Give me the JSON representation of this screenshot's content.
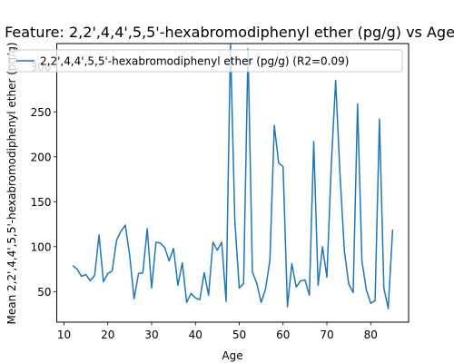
{
  "chart_data": {
    "type": "line",
    "title": "Feature: 2,2',4,4',5,5'-hexabromodiphenyl ether (pg/g) vs Age",
    "xlabel": "Age",
    "ylabel": "Mean 2,2',4,4',5,5'-hexabromodiphenyl ether (pg/g)",
    "xlim": [
      8.35,
      88.65
    ],
    "ylim": [
      16,
      326
    ],
    "xticks": [
      10,
      20,
      30,
      40,
      50,
      60,
      70,
      80
    ],
    "yticks": [
      50,
      100,
      150,
      200,
      250,
      300
    ],
    "grid": false,
    "legend_position": "top-right",
    "series": [
      {
        "name": "2,2',4,4',5,5'-hexabromodiphenyl ether (pg/g) (R2=0.09)",
        "color": "#1f77b4",
        "x": [
          12,
          13,
          14,
          15,
          16,
          17,
          18,
          19,
          20,
          21,
          22,
          23,
          24,
          25,
          26,
          27,
          28,
          29,
          30,
          31,
          32,
          33,
          34,
          35,
          36,
          37,
          38,
          39,
          40,
          41,
          42,
          43,
          44,
          45,
          46,
          47,
          48,
          49,
          50,
          51,
          52,
          53,
          54,
          55,
          56,
          57,
          58,
          59,
          60,
          61,
          62,
          63,
          64,
          65,
          66,
          67,
          68,
          69,
          70,
          71,
          72,
          73,
          74,
          75,
          76,
          77,
          78,
          79,
          80,
          81,
          82,
          83,
          84,
          85
        ],
        "y": [
          79,
          75,
          67,
          69,
          62,
          68,
          113,
          61,
          70,
          73,
          107,
          117,
          124,
          90,
          42,
          70,
          71,
          120,
          54,
          105,
          104,
          99,
          84,
          98,
          57,
          82,
          38,
          48,
          43,
          41,
          71,
          46,
          105,
          96,
          105,
          39,
          325,
          128,
          54,
          59,
          320,
          72,
          59,
          38,
          53,
          85,
          235,
          193,
          189,
          33,
          81,
          55,
          62,
          63,
          46,
          217,
          57,
          100,
          66,
          190,
          285,
          180,
          95,
          58,
          49,
          259,
          84,
          52,
          37,
          40,
          242,
          54,
          31,
          119
        ]
      }
    ]
  }
}
